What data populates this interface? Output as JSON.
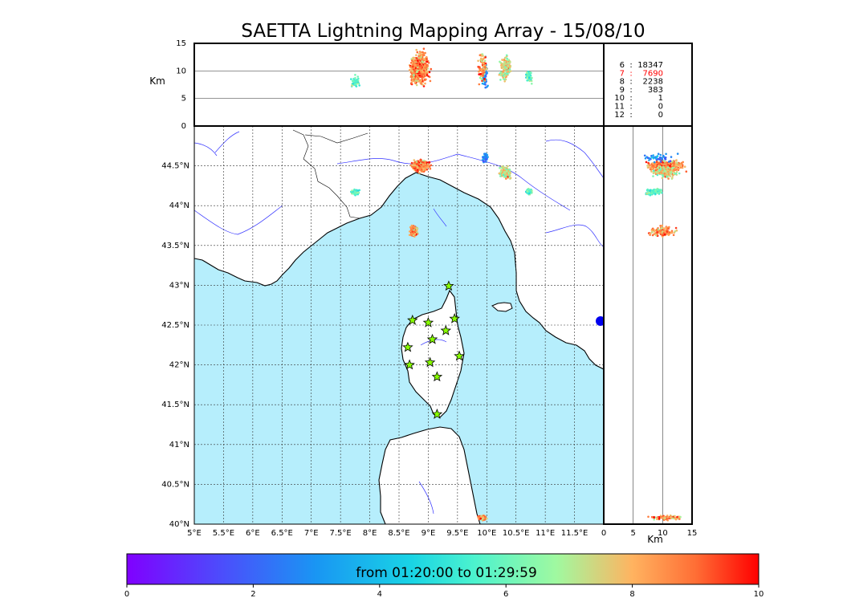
{
  "chart_data": {
    "type": "scatter",
    "title": "SAETTA Lightning Mapping Array - 15/08/10",
    "map": {
      "lon_range": [
        5,
        12
      ],
      "lat_range": [
        40,
        45
      ],
      "x_ticks": [
        "5°E",
        "5.5°E",
        "6°E",
        "6.5°E",
        "7°E",
        "7.5°E",
        "8°E",
        "8.5°E",
        "9°E",
        "9.5°E",
        "10°E",
        "10.5°E",
        "11°E",
        "11.5°E"
      ],
      "y_ticks": [
        "40°N",
        "40.5°N",
        "41°N",
        "41.5°N",
        "42°N",
        "42.5°N",
        "43°N",
        "43.5°N",
        "44°N",
        "44.5°N"
      ],
      "grid": true,
      "sea_color": "#b6eefc",
      "land_color": "#ffffff",
      "river_color": "#3333ff"
    },
    "altitude_axis": {
      "label": "Km",
      "range": [
        0,
        15
      ],
      "ticks": [
        "0",
        "5",
        "10",
        "15"
      ]
    },
    "stations": [
      {
        "lon": 9.35,
        "lat": 42.99
      },
      {
        "lon": 8.73,
        "lat": 42.56
      },
      {
        "lon": 9.0,
        "lat": 42.53
      },
      {
        "lon": 9.45,
        "lat": 42.58
      },
      {
        "lon": 9.07,
        "lat": 42.32
      },
      {
        "lon": 9.3,
        "lat": 42.43
      },
      {
        "lon": 8.65,
        "lat": 42.22
      },
      {
        "lon": 9.03,
        "lat": 42.03
      },
      {
        "lon": 8.68,
        "lat": 42.0
      },
      {
        "lon": 9.53,
        "lat": 42.11
      },
      {
        "lon": 9.15,
        "lat": 41.85
      },
      {
        "lon": 9.15,
        "lat": 41.38
      }
    ],
    "clusters": [
      {
        "lon": 8.87,
        "lat": 44.5,
        "lon_sd": 0.12,
        "lat_sd": 0.06,
        "alt": 10.5,
        "alt_sd": 2.5,
        "n": 400,
        "t": 8.6
      },
      {
        "lon": 8.75,
        "lat": 43.68,
        "lon_sd": 0.06,
        "lat_sd": 0.06,
        "alt": 10,
        "alt_sd": 2,
        "n": 120,
        "t": 8.5
      },
      {
        "lon": 10.32,
        "lat": 44.42,
        "lon_sd": 0.09,
        "lat_sd": 0.06,
        "alt": 10.5,
        "alt_sd": 2,
        "n": 160,
        "t": 7.5
      },
      {
        "lon": 9.98,
        "lat": 44.6,
        "lon_sd": 0.05,
        "lat_sd": 0.05,
        "alt": 9.5,
        "alt_sd": 2.5,
        "n": 40,
        "t": 3
      },
      {
        "lon": 10.72,
        "lat": 44.18,
        "lon_sd": 0.05,
        "lat_sd": 0.04,
        "alt": 9,
        "alt_sd": 1,
        "n": 60,
        "t": 6
      },
      {
        "lon": 7.75,
        "lat": 44.17,
        "lon_sd": 0.06,
        "lat_sd": 0.03,
        "alt": 8,
        "alt_sd": 1,
        "n": 50,
        "t": 5.5
      },
      {
        "lon": 9.93,
        "lat": 40.08,
        "lon_sd": 0.07,
        "lat_sd": 0.03,
        "alt": 10.5,
        "alt_sd": 2.5,
        "n": 80,
        "t": 8.5
      }
    ],
    "stats": [
      {
        "level": "6",
        "count": "18347",
        "color": "#000000"
      },
      {
        "level": "7",
        "count": "7690",
        "color": "#ff0000"
      },
      {
        "level": "8",
        "count": "2238",
        "color": "#000000"
      },
      {
        "level": "9",
        "count": "383",
        "color": "#000000"
      },
      {
        "level": "10",
        "count": "1",
        "color": "#000000"
      },
      {
        "level": "11",
        "count": "0",
        "color": "#000000"
      },
      {
        "level": "12",
        "count": "0",
        "color": "#000000"
      }
    ],
    "colorbar": {
      "label": "from 01:20:00 to 01:29:59",
      "range": [
        0,
        10
      ],
      "ticks": [
        "0",
        "2",
        "4",
        "6",
        "8",
        "10"
      ]
    }
  }
}
